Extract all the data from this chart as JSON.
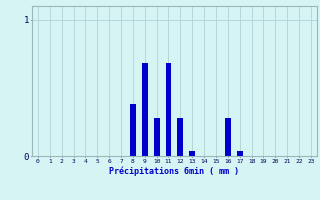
{
  "hours": [
    0,
    1,
    2,
    3,
    4,
    5,
    6,
    7,
    8,
    9,
    10,
    11,
    12,
    13,
    14,
    15,
    16,
    17,
    18,
    19,
    20,
    21,
    22,
    23
  ],
  "values": [
    0,
    0,
    0,
    0,
    0,
    0,
    0,
    0,
    0.38,
    0.68,
    0.28,
    0.68,
    0.28,
    0.04,
    0,
    0,
    0.28,
    0.04,
    0,
    0,
    0,
    0,
    0,
    0
  ],
  "bar_color": "#0000cc",
  "bg_color": "#d7f4f4",
  "grid_color": "#afd4d4",
  "xlabel": "Précipitations 6min ( mm )",
  "ylim": [
    0,
    1.1
  ],
  "xlim": [
    -0.5,
    23.5
  ],
  "ytick_positions": [
    0,
    1
  ],
  "ytick_labels": [
    "0",
    "1"
  ],
  "figsize": [
    3.2,
    2.0
  ],
  "dpi": 100
}
